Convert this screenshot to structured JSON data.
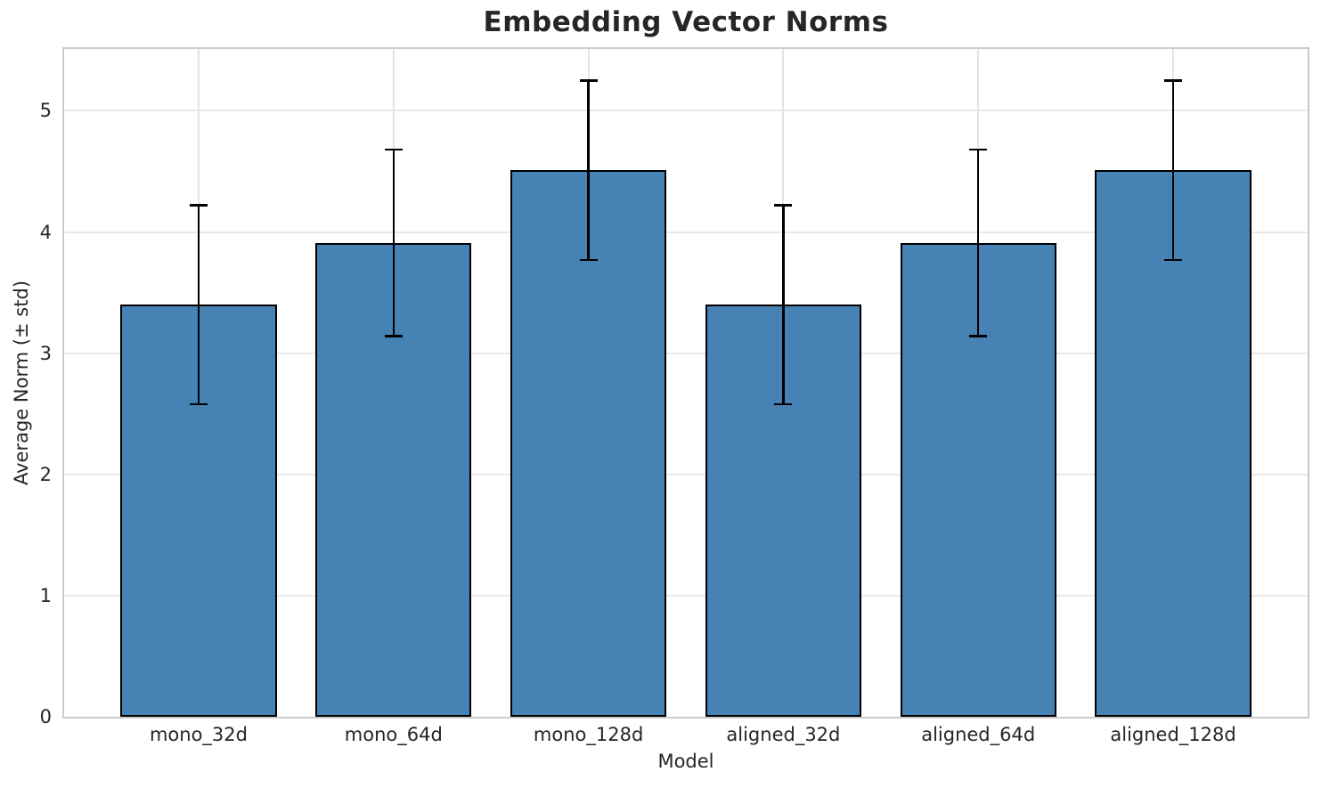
{
  "chart_data": {
    "type": "bar",
    "title": "Embedding Vector Norms",
    "xlabel": "Model",
    "ylabel": "Average Norm (± std)",
    "categories": [
      "mono_32d",
      "mono_64d",
      "mono_128d",
      "aligned_32d",
      "aligned_64d",
      "aligned_128d"
    ],
    "values": [
      3.4,
      3.91,
      4.51,
      3.4,
      3.91,
      4.51
    ],
    "errors": [
      0.82,
      0.77,
      0.74,
      0.82,
      0.77,
      0.74
    ],
    "yticks": [
      0,
      1,
      2,
      3,
      4,
      5
    ],
    "ylim": [
      0,
      5.51
    ],
    "xlim": [
      -0.69,
      5.69
    ],
    "bar_width": 0.8,
    "grid": true,
    "legend": "none",
    "colors": {
      "bar_fill": "#4682b4",
      "bar_edge": "#000000",
      "error_bar": "#000000",
      "grid_horizontal": "#e9e9e9",
      "grid_vertical": "#e4e4e4",
      "spine": "#cccccc",
      "text": "#262626",
      "background": "#ffffff"
    }
  }
}
